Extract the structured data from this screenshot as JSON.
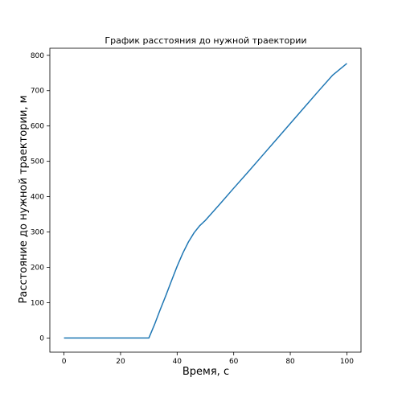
{
  "chart_data": {
    "type": "line",
    "title": "График расстояния до нужной траектории",
    "xlabel": "Время, с",
    "ylabel": "Расстояние до нужной траектории, м",
    "xlim": [
      -5,
      105
    ],
    "ylim": [
      -40,
      820
    ],
    "x_ticks": [
      0,
      20,
      40,
      60,
      80,
      100
    ],
    "y_ticks": [
      0,
      100,
      200,
      300,
      400,
      500,
      600,
      700,
      800
    ],
    "grid": false,
    "legend": "none",
    "series": [
      {
        "color": "#1f77b4",
        "x": [
          0,
          30,
          32,
          34,
          36,
          38,
          40,
          42,
          44,
          46,
          48,
          50,
          55,
          60,
          65,
          70,
          75,
          80,
          85,
          90,
          95,
          100
        ],
        "y": [
          0,
          0,
          38,
          80,
          120,
          162,
          203,
          240,
          272,
          298,
          318,
          333,
          378,
          424,
          469,
          515,
          561,
          607,
          653,
          699,
          744,
          777
        ]
      }
    ]
  }
}
